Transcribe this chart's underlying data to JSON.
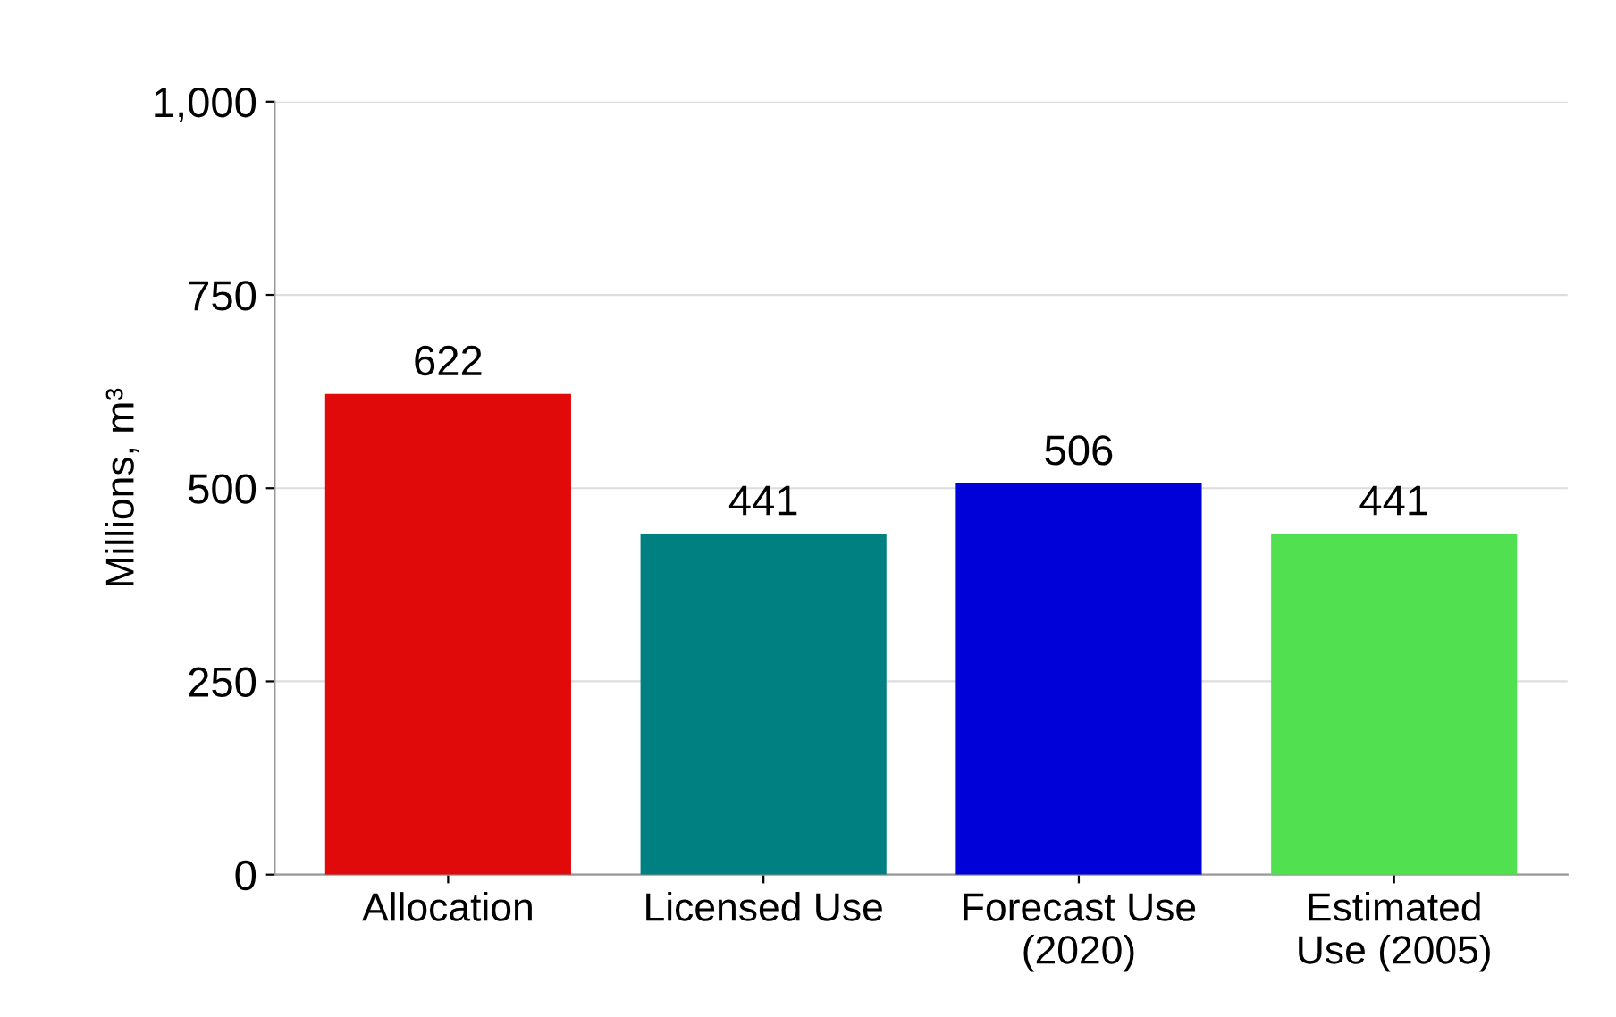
{
  "chart_data": {
    "type": "bar",
    "ylabel": "Millions, m³",
    "categories": [
      "Allocation",
      "Licensed Use",
      "Forecast Use\n(2020)",
      "Estimated\nUse (2005)"
    ],
    "values": [
      622,
      441,
      506,
      441
    ],
    "colors": [
      "#e00a0a",
      "#008080",
      "#0000d8",
      "#50e050"
    ],
    "ylim": [
      0,
      1000
    ],
    "yticks": [
      0,
      250,
      500,
      750,
      {
        "value": 1000,
        "label": "1,000"
      }
    ],
    "grid": "y",
    "data_labels": true
  }
}
